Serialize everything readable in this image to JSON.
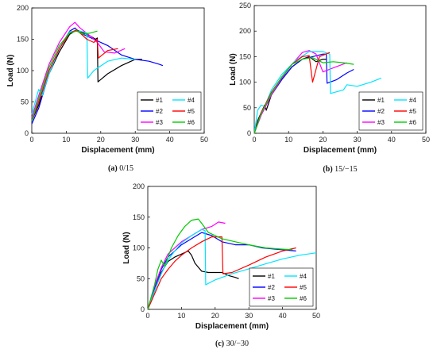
{
  "chart_data": [
    {
      "type": "line",
      "caption_letter": "(a)",
      "caption_text": "0/15",
      "xlabel": "Displacement (mm)",
      "ylabel": "Load (N)",
      "xlim": [
        0,
        50
      ],
      "ylim": [
        0,
        200
      ],
      "xticks": [
        "0",
        "10",
        "20",
        "30",
        "40",
        "50"
      ],
      "yticks": [
        "0",
        "50",
        "100",
        "150",
        "200"
      ],
      "legend_position": "bottom-right",
      "series": [
        {
          "name": "#1",
          "color": "#000000",
          "x": [
            0,
            2,
            5,
            8,
            11,
            13,
            15,
            17,
            18.5,
            19,
            19.2,
            22,
            26,
            30,
            32
          ],
          "y": [
            20,
            45,
            95,
            130,
            158,
            165,
            160,
            155,
            150,
            152,
            82,
            95,
            108,
            118,
            118
          ]
        },
        {
          "name": "#2",
          "color": "#0000ff",
          "x": [
            0,
            2,
            5,
            8,
            11,
            12.5,
            14,
            16,
            18,
            22,
            26,
            30,
            34,
            37,
            38
          ],
          "y": [
            15,
            40,
            95,
            135,
            163,
            168,
            160,
            155,
            150,
            140,
            125,
            118,
            115,
            110,
            108
          ]
        },
        {
          "name": "#3",
          "color": "#ff00ff",
          "x": [
            0,
            2,
            5,
            8,
            11,
            12.5,
            14,
            17,
            19,
            21,
            24,
            27
          ],
          "y": [
            25,
            60,
            110,
            145,
            170,
            177,
            168,
            155,
            145,
            130,
            128,
            135
          ]
        },
        {
          "name": "#4",
          "color": "#00e5ff",
          "x": [
            0,
            1,
            2,
            3,
            5,
            8,
            11,
            14,
            16,
            16.2,
            18,
            22,
            26,
            30
          ],
          "y": [
            30,
            50,
            70,
            60,
            95,
            135,
            162,
            163,
            160,
            88,
            100,
            115,
            120,
            118
          ]
        },
        {
          "name": "#5",
          "color": "#ff0000",
          "x": [
            0,
            2,
            5,
            8,
            11,
            13,
            16,
            18,
            19,
            19.3,
            22,
            25
          ],
          "y": [
            20,
            50,
            100,
            135,
            160,
            165,
            150,
            145,
            150,
            120,
            132,
            135
          ]
        },
        {
          "name": "#6",
          "color": "#00cc00",
          "x": [
            0,
            2,
            5,
            8,
            11,
            13,
            15,
            17,
            19
          ],
          "y": [
            20,
            55,
            105,
            140,
            160,
            163,
            158,
            160,
            163
          ]
        }
      ]
    },
    {
      "type": "line",
      "caption_letter": "(b)",
      "caption_text": "15/−15",
      "xlabel": "Displacement (mm)",
      "ylabel": "Load (N)",
      "xlim": [
        0,
        50
      ],
      "ylim": [
        0,
        250
      ],
      "xticks": [
        "0",
        "10",
        "20",
        "30",
        "40",
        "50"
      ],
      "yticks": [
        "0",
        "50",
        "100",
        "150",
        "200",
        "250"
      ],
      "legend_position": "bottom-right",
      "series": [
        {
          "name": "#1",
          "color": "#000000",
          "x": [
            0,
            1,
            2,
            3,
            3.5,
            5,
            8,
            11,
            14,
            16,
            18,
            20,
            21
          ],
          "y": [
            0,
            25,
            40,
            55,
            45,
            75,
            105,
            130,
            145,
            150,
            140,
            145,
            145
          ]
        },
        {
          "name": "#2",
          "color": "#0000ff",
          "x": [
            0,
            2,
            5,
            8,
            11,
            14,
            17,
            20,
            21,
            21.2,
            24,
            27,
            29
          ],
          "y": [
            0,
            40,
            75,
            105,
            130,
            145,
            150,
            155,
            155,
            98,
            105,
            118,
            125
          ]
        },
        {
          "name": "#3",
          "color": "#ff00ff",
          "x": [
            0,
            2,
            5,
            8,
            11,
            14,
            16,
            18,
            20,
            23,
            27
          ],
          "y": [
            0,
            35,
            75,
            108,
            135,
            158,
            162,
            155,
            120,
            128,
            138
          ]
        },
        {
          "name": "#4",
          "color": "#00e5ff",
          "x": [
            0,
            1,
            2,
            3,
            5,
            8,
            12,
            16,
            20,
            22,
            22.2,
            26,
            27,
            30,
            34,
            37
          ],
          "y": [
            0,
            45,
            55,
            52,
            85,
            115,
            142,
            160,
            160,
            155,
            78,
            85,
            95,
            92,
            100,
            108
          ]
        },
        {
          "name": "#5",
          "color": "#ff0000",
          "x": [
            0,
            2,
            5,
            8,
            11,
            14,
            16,
            17,
            19,
            22
          ],
          "y": [
            0,
            40,
            80,
            110,
            135,
            150,
            152,
            100,
            150,
            158
          ]
        },
        {
          "name": "#6",
          "color": "#00cc00",
          "x": [
            0,
            2,
            5,
            8,
            11,
            14,
            17,
            20,
            23,
            26,
            29
          ],
          "y": [
            0,
            38,
            78,
            110,
            135,
            145,
            148,
            138,
            140,
            138,
            135
          ]
        }
      ]
    },
    {
      "type": "line",
      "caption_letter": "(c)",
      "caption_text": "30/−30",
      "xlabel": "Displacement (mm)",
      "ylabel": "Load (N)",
      "xlim": [
        0,
        50
      ],
      "ylim": [
        0,
        200
      ],
      "xticks": [
        "0",
        "10",
        "20",
        "30",
        "40",
        "50"
      ],
      "yticks": [
        "0",
        "50",
        "100",
        "150",
        "200"
      ],
      "legend_position": "bottom-right",
      "series": [
        {
          "name": "#1",
          "color": "#000000",
          "x": [
            0,
            2,
            4,
            6,
            8,
            10,
            12,
            13,
            14,
            16,
            18,
            20,
            22,
            24,
            26,
            27
          ],
          "y": [
            0,
            30,
            60,
            78,
            85,
            90,
            95,
            88,
            75,
            62,
            60,
            60,
            60,
            55,
            52,
            50
          ]
        },
        {
          "name": "#2",
          "color": "#0000ff",
          "x": [
            0,
            2,
            4,
            6,
            8,
            10,
            13,
            16,
            19,
            22,
            26,
            30,
            34,
            38,
            42,
            44
          ],
          "y": [
            0,
            35,
            65,
            85,
            95,
            105,
            115,
            125,
            120,
            110,
            105,
            105,
            100,
            98,
            96,
            95
          ]
        },
        {
          "name": "#3",
          "color": "#ff00ff",
          "x": [
            0,
            2,
            4,
            6,
            8,
            10,
            13,
            16,
            19,
            21,
            23
          ],
          "y": [
            0,
            38,
            68,
            90,
            100,
            110,
            120,
            130,
            135,
            142,
            140
          ]
        },
        {
          "name": "#4",
          "color": "#00e5ff",
          "x": [
            0,
            2,
            4,
            6,
            8,
            10,
            13,
            16,
            17,
            17.2,
            20,
            25,
            30,
            35,
            40,
            45,
            50
          ],
          "y": [
            0,
            30,
            58,
            80,
            95,
            108,
            120,
            130,
            128,
            40,
            48,
            58,
            66,
            74,
            82,
            88,
            92
          ]
        },
        {
          "name": "#5",
          "color": "#ff0000",
          "x": [
            0,
            2,
            4,
            6,
            8,
            10,
            13,
            16,
            19,
            22,
            22.3,
            25,
            30,
            35,
            40,
            44
          ],
          "y": [
            0,
            25,
            50,
            65,
            78,
            88,
            100,
            110,
            118,
            118,
            58,
            60,
            72,
            85,
            95,
            100
          ]
        },
        {
          "name": "#6",
          "color": "#00cc00",
          "x": [
            0,
            2,
            3,
            4,
            5,
            7,
            9,
            11,
            13,
            15,
            16,
            18,
            22,
            26,
            30,
            35,
            40,
            43
          ],
          "y": [
            0,
            40,
            65,
            80,
            70,
            100,
            120,
            135,
            145,
            147,
            140,
            125,
            115,
            110,
            105,
            100,
            98,
            97
          ]
        }
      ]
    }
  ]
}
